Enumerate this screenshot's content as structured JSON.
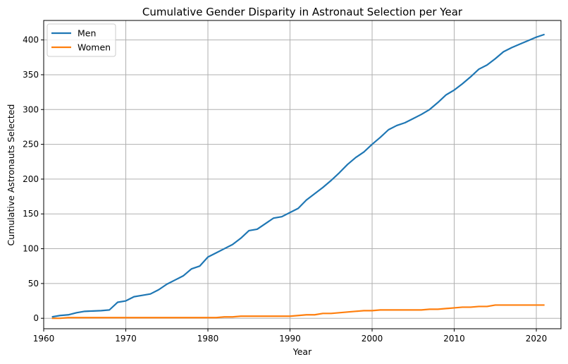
{
  "chart_data": {
    "type": "line",
    "title": "Cumulative Gender Disparity in Astronaut Selection per Year",
    "xlabel": "Year",
    "ylabel": "Cumulative Astronauts Selected",
    "xlim": [
      1960,
      2023
    ],
    "ylim": [
      -15,
      428
    ],
    "x_ticks": [
      1960,
      1970,
      1980,
      1990,
      2000,
      2010,
      2020
    ],
    "y_ticks": [
      0,
      50,
      100,
      150,
      200,
      250,
      300,
      350,
      400
    ],
    "grid": true,
    "legend_position": "top-left",
    "x": [
      1961,
      1962,
      1963,
      1964,
      1965,
      1966,
      1967,
      1968,
      1969,
      1970,
      1971,
      1972,
      1973,
      1974,
      1975,
      1976,
      1977,
      1978,
      1979,
      1980,
      1981,
      1982,
      1983,
      1984,
      1985,
      1986,
      1987,
      1988,
      1989,
      1990,
      1991,
      1992,
      1993,
      1994,
      1995,
      1996,
      1997,
      1998,
      1999,
      2000,
      2001,
      2002,
      2003,
      2004,
      2005,
      2006,
      2007,
      2008,
      2009,
      2010,
      2011,
      2012,
      2013,
      2014,
      2015,
      2016,
      2017,
      2018,
      2019,
      2020,
      2021
    ],
    "series": [
      {
        "name": "Men",
        "color": "#1f77b4",
        "values": [
          2,
          4,
          5,
          8,
          10,
          10.5,
          11,
          12,
          23,
          25,
          31,
          33,
          35,
          41,
          49,
          55,
          61,
          71,
          75,
          88,
          94,
          100,
          106,
          115,
          126,
          128,
          136,
          144,
          146,
          152,
          158,
          170,
          179,
          188,
          198,
          209,
          221,
          231,
          239,
          250,
          260,
          271,
          277,
          281,
          287,
          293,
          300,
          310,
          321,
          328,
          337,
          347,
          358,
          364,
          373,
          383,
          389,
          394,
          399,
          404,
          408
        ]
      },
      {
        "name": "Women",
        "color": "#ff7f0e",
        "values": [
          0,
          0,
          1,
          1,
          1,
          1,
          1,
          1,
          1,
          1,
          1,
          1,
          1,
          1,
          1,
          1,
          1,
          1,
          1,
          1,
          1,
          2,
          2,
          3,
          3,
          3,
          3,
          3,
          3,
          3,
          4,
          5,
          5,
          7,
          7,
          8,
          9,
          10,
          11,
          11,
          12,
          12,
          12,
          12,
          12,
          12,
          13,
          13,
          14,
          15,
          16,
          16,
          17,
          17,
          19,
          19,
          19,
          19,
          19,
          19,
          19
        ]
      }
    ]
  }
}
